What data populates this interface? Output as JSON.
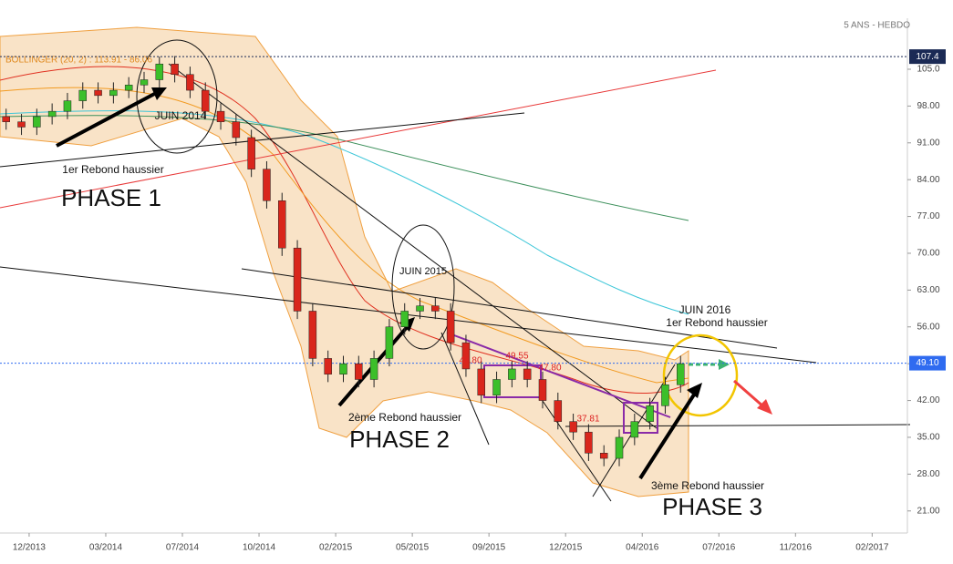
{
  "chart_data": {
    "type": "candlestick",
    "corner_label": "5 ANS - HEBDO",
    "indicator_label": "BOLLINGER (20, 2) : 113.91 - 86.06",
    "up_color": "#3cbf2a",
    "down_color": "#d9261c",
    "x": [
      -0.3,
      -0.1,
      0.1,
      0.3,
      0.5,
      0.7,
      0.9,
      1.1,
      1.3,
      1.5,
      1.7,
      1.9,
      2.1,
      2.3,
      2.5,
      2.7,
      2.9,
      3.1,
      3.3,
      3.5,
      3.7,
      3.9,
      4.1,
      4.3,
      4.5,
      4.7,
      4.9,
      5.1,
      5.3,
      5.5,
      5.7,
      5.9,
      6.1,
      6.3,
      6.5,
      6.7,
      6.9,
      7.1,
      7.3,
      7.5,
      7.7,
      7.9,
      8.1,
      8.3,
      8.5
    ],
    "open": [
      96,
      95,
      94,
      96,
      97,
      99,
      101,
      100,
      101,
      102,
      103,
      106,
      104,
      101,
      97,
      95,
      92,
      86,
      80,
      71,
      59,
      50,
      47,
      49,
      46,
      50,
      56,
      59,
      60,
      59,
      53,
      48,
      43,
      46,
      48,
      46,
      42,
      38,
      36,
      32,
      31,
      35,
      38,
      41,
      45
    ],
    "high": [
      97.5,
      96.5,
      97.5,
      98.5,
      100.5,
      102.5,
      102.5,
      102.5,
      103.5,
      104.5,
      107.4,
      107.5,
      105.5,
      102.5,
      98.5,
      96.5,
      93.5,
      87.5,
      81.5,
      72.5,
      60.5,
      51.5,
      50.5,
      50.5,
      51.5,
      57.5,
      60.5,
      61.5,
      61.5,
      60.5,
      54.5,
      49.5,
      47.5,
      49.5,
      49.5,
      47.5,
      43.5,
      39.5,
      37.5,
      33.5,
      36.5,
      39.5,
      42.5,
      46.5,
      50.5
    ],
    "low": [
      93.5,
      92.5,
      92.5,
      94.5,
      95.5,
      97.5,
      98.5,
      98.5,
      99.5,
      100.5,
      101.5,
      102.5,
      99.5,
      95.5,
      93.5,
      90.5,
      84.5,
      78.5,
      69.5,
      57.5,
      48.5,
      45.5,
      45.5,
      44.5,
      44.5,
      48.5,
      54.5,
      57.5,
      57.5,
      51.5,
      46.5,
      41.5,
      41.5,
      44.5,
      44.5,
      40.5,
      36.5,
      34.5,
      30.5,
      29.5,
      29.5,
      33.5,
      36.5,
      39.5,
      43.5
    ],
    "close": [
      95,
      94,
      96,
      97,
      99,
      101,
      100,
      101,
      102,
      103,
      106,
      104,
      101,
      97,
      95,
      92,
      86,
      80,
      71,
      59,
      50,
      47,
      49,
      46,
      50,
      56,
      59,
      60,
      59,
      53,
      48,
      43,
      46,
      48,
      46,
      42,
      38,
      36,
      32,
      31,
      35,
      38,
      41,
      45,
      49
    ],
    "xlim": [
      -0.38,
      11.46
    ],
    "xticks": [
      {
        "value": 0,
        "label": "12/2013"
      },
      {
        "value": 1,
        "label": "03/2014"
      },
      {
        "value": 2,
        "label": "07/2014"
      },
      {
        "value": 3,
        "label": "10/2014"
      },
      {
        "value": 4,
        "label": "02/2015"
      },
      {
        "value": 5,
        "label": "05/2015"
      },
      {
        "value": 6,
        "label": "09/2015"
      },
      {
        "value": 7,
        "label": "12/2015"
      },
      {
        "value": 8,
        "label": "04/2016"
      },
      {
        "value": 9,
        "label": "07/2016"
      },
      {
        "value": 10,
        "label": "11/2016"
      },
      {
        "value": 11,
        "label": "02/2017"
      }
    ],
    "ylim": [
      16.8,
      114.7
    ],
    "yticks": [
      {
        "value": 21,
        "label": "21.00"
      },
      {
        "value": 28,
        "label": "28.00"
      },
      {
        "value": 35,
        "label": "35.00"
      },
      {
        "value": 42,
        "label": "42.00"
      },
      {
        "value": 49,
        "label": "49.00"
      },
      {
        "value": 56,
        "label": "56.00"
      },
      {
        "value": 63,
        "label": "63.00"
      },
      {
        "value": 70,
        "label": "70.00"
      },
      {
        "value": 77,
        "label": "77.00"
      },
      {
        "value": 84,
        "label": "84.00"
      },
      {
        "value": 91,
        "label": "91.00"
      },
      {
        "value": 98,
        "label": "98.00"
      },
      {
        "value": 105,
        "label": "105.0"
      }
    ],
    "price_tags": [
      {
        "value": 107.4,
        "label": "107.4",
        "color": "#1b2a55"
      },
      {
        "value": 49.1,
        "label": "49.10",
        "color": "#2f6bf0"
      }
    ],
    "annotations": [
      "JUIN 2014",
      "1er Rebond haussier",
      "PHASE 1",
      "JUIN 2015",
      "2ème Rebond haussier",
      "PHASE 2",
      "JUIN 2016",
      "1er Rebond haussier",
      "3ème Rebond haussier",
      "PHASE 3",
      "48.80",
      "49.55",
      "47.80",
      "37.81"
    ]
  }
}
